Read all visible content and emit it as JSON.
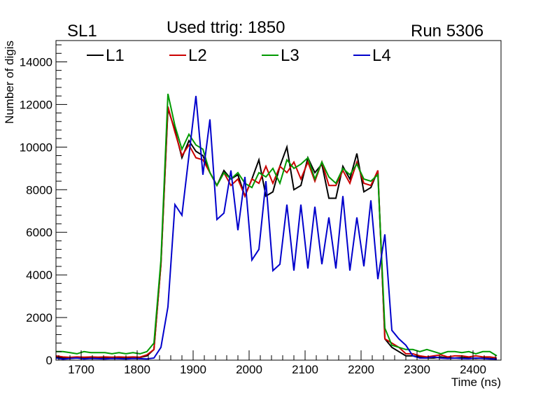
{
  "chart_data": {
    "type": "line",
    "panel_label": "SL1",
    "title": "Used ttrig: 1850",
    "run_label": "Run 5306",
    "xlabel": "Time (ns)",
    "ylabel": "Number of digis",
    "xlim": [
      1655,
      2450
    ],
    "ylim": [
      0,
      15000
    ],
    "xticks": [
      1700,
      1800,
      1900,
      2000,
      2100,
      2200,
      2300,
      2400
    ],
    "yticks": [
      0,
      2000,
      4000,
      6000,
      8000,
      10000,
      12000,
      14000
    ],
    "xtick_labels": [
      "1700",
      "1800",
      "1900",
      "2000",
      "2100",
      "2200",
      "2300",
      "2400"
    ],
    "ytick_labels": [
      "0",
      "2000",
      "4000",
      "6000",
      "8000",
      "10000",
      "12000",
      "14000"
    ],
    "legend_position": "top",
    "x": [
      1655,
      1667.5,
      1680,
      1692.5,
      1705,
      1717.5,
      1730,
      1742.5,
      1755,
      1767.5,
      1780,
      1792.5,
      1805,
      1817.5,
      1830,
      1842.5,
      1855,
      1867.5,
      1880,
      1892.5,
      1905,
      1917.5,
      1930,
      1942.5,
      1955,
      1967.5,
      1980,
      1992.5,
      2005,
      2017.5,
      2030,
      2042.5,
      2055,
      2067.5,
      2080,
      2092.5,
      2105,
      2117.5,
      2130,
      2142.5,
      2155,
      2167.5,
      2180,
      2192.5,
      2205,
      2217.5,
      2230,
      2242.5,
      2255,
      2267.5,
      2280,
      2292.5,
      2305,
      2317.5,
      2330,
      2342.5,
      2355,
      2367.5,
      2380,
      2392.5,
      2405,
      2417.5,
      2430,
      2442.5
    ],
    "series": [
      {
        "name": "L1",
        "color": "#000000",
        "values": [
          150,
          100,
          120,
          110,
          100,
          130,
          110,
          120,
          100,
          120,
          110,
          130,
          120,
          200,
          500,
          4500,
          11800,
          10800,
          9500,
          10300,
          9800,
          9600,
          8800,
          8200,
          8900,
          8500,
          8700,
          7700,
          8500,
          9400,
          7700,
          7900,
          9100,
          10000,
          8000,
          8200,
          9500,
          8800,
          9200,
          7600,
          7600,
          9100,
          8500,
          9700,
          7900,
          8100,
          8900,
          1000,
          600,
          400,
          200,
          200,
          150,
          100,
          100,
          150,
          100,
          100,
          120,
          100,
          80,
          100,
          80,
          60
        ]
      },
      {
        "name": "L2",
        "color": "#cc0000",
        "values": [
          200,
          150,
          130,
          150,
          140,
          150,
          140,
          150,
          140,
          150,
          140,
          150,
          140,
          250,
          500,
          4500,
          11900,
          10700,
          9600,
          10100,
          9500,
          9400,
          8800,
          8200,
          8800,
          8200,
          8500,
          7700,
          8500,
          8300,
          9100,
          8300,
          9100,
          8800,
          9300,
          8500,
          9300,
          8400,
          9300,
          8200,
          8200,
          8900,
          8300,
          9300,
          8300,
          8200,
          8900,
          1000,
          800,
          600,
          300,
          300,
          200,
          150,
          200,
          250,
          150,
          200,
          200,
          150,
          200,
          150,
          150,
          100
        ]
      },
      {
        "name": "L3",
        "color": "#009900",
        "values": [
          400,
          400,
          350,
          300,
          400,
          350,
          350,
          350,
          300,
          350,
          300,
          350,
          300,
          400,
          800,
          4700,
          12500,
          11000,
          9900,
          10600,
          10100,
          9900,
          8800,
          8200,
          8800,
          8500,
          8800,
          8300,
          8100,
          8800,
          8600,
          9000,
          8300,
          9400,
          9000,
          9200,
          9500,
          8500,
          9300,
          8600,
          8300,
          9000,
          8700,
          9200,
          8500,
          8400,
          8700,
          1500,
          700,
          600,
          500,
          500,
          400,
          500,
          400,
          300,
          400,
          400,
          350,
          400,
          300,
          400,
          400,
          200
        ]
      },
      {
        "name": "L4",
        "color": "#0000cc",
        "values": [
          100,
          50,
          80,
          100,
          60,
          80,
          70,
          60,
          80,
          70,
          60,
          80,
          70,
          60,
          100,
          600,
          2500,
          7300,
          6800,
          9600,
          12400,
          8700,
          11300,
          6600,
          6900,
          8900,
          6100,
          8600,
          4700,
          5200,
          8400,
          4200,
          4500,
          7300,
          4200,
          7300,
          4300,
          7200,
          4500,
          6700,
          4300,
          7700,
          4200,
          6700,
          4400,
          7500,
          3800,
          5900,
          1400,
          1000,
          700,
          200,
          100,
          100,
          150,
          100,
          80,
          100,
          80,
          70,
          100,
          80,
          60,
          50
        ]
      }
    ]
  }
}
